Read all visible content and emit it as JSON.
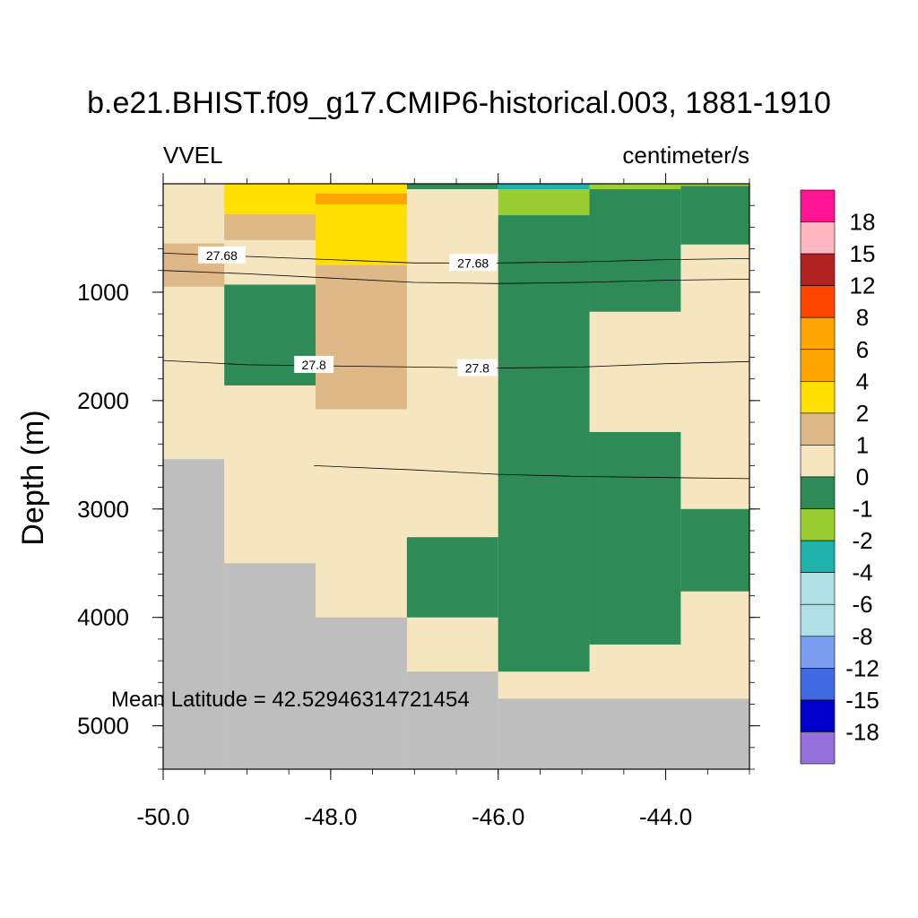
{
  "chart_data": {
    "type": "heatmap",
    "title": "b.e21.BHIST.f09_g17.CMIP6-historical.003, 1881-1910",
    "left_string": "VVEL",
    "right_string": "centimeter/s",
    "xlabel": "",
    "ylabel": "Depth (m)",
    "xlim": [
      -50.0,
      -43.0
    ],
    "ylim": [
      5400,
      0
    ],
    "x_ticks": [
      -50.0,
      -48.0,
      -46.0,
      -44.0
    ],
    "x_tick_labels": [
      "-50.0",
      "-48.0",
      "-46.0",
      "-44.0"
    ],
    "y_ticks": [
      1000,
      2000,
      3000,
      4000,
      5000
    ],
    "y_tick_labels": [
      "1000",
      "2000",
      "3000",
      "4000",
      "5000"
    ],
    "annotation": "Mean Latitude = 42.52946314721454",
    "missing_color": "#bebebe",
    "colorbar": {
      "labels": [
        "18",
        "15",
        "12",
        "8",
        "6",
        "4",
        "2",
        "1",
        "0",
        "-1",
        "-2",
        "-4",
        "-6",
        "-8",
        "-12",
        "-15",
        "-18"
      ],
      "colors": [
        "#ff1493",
        "#ffb6c1",
        "#b22222",
        "#ff4500",
        "#ffa500",
        "#ffa500",
        "#ffe000",
        "#deb887",
        "#f5e6c0",
        "#2e8b57",
        "#9acd32",
        "#20b2aa",
        "#b0e0e6",
        "#b0e0e6",
        "#7b9ef0",
        "#4169e1",
        "#0000cd",
        "#9370db"
      ]
    },
    "cells": [
      {
        "x0": -50.0,
        "x1": -43.0,
        "d0": 0,
        "d1": 5400,
        "value": 0.5
      },
      {
        "x0": -50.0,
        "x1": -49.27,
        "d0": 550,
        "d1": 950,
        "value": 1.5
      },
      {
        "x0": -49.27,
        "x1": -48.18,
        "d0": 0,
        "d1": 280,
        "value": 3
      },
      {
        "x0": -49.27,
        "x1": -48.18,
        "d0": 280,
        "d1": 520,
        "value": 1.5
      },
      {
        "x0": -48.18,
        "x1": -47.09,
        "d0": 0,
        "d1": 90,
        "value": 3
      },
      {
        "x0": -48.18,
        "x1": -47.09,
        "d0": 90,
        "d1": 190,
        "value": 5
      },
      {
        "x0": -48.18,
        "x1": -47.09,
        "d0": 190,
        "d1": 750,
        "value": 3
      },
      {
        "x0": -48.18,
        "x1": -47.09,
        "d0": 750,
        "d1": 2080,
        "value": 1.5
      },
      {
        "x0": -49.27,
        "x1": -48.18,
        "d0": 930,
        "d1": 1860,
        "value": -0.5
      },
      {
        "x0": -47.09,
        "x1": -46.0,
        "d0": 0,
        "d1": 50,
        "value": -0.5
      },
      {
        "x0": -46.0,
        "x1": -44.91,
        "d0": 0,
        "d1": 50,
        "value": -3
      },
      {
        "x0": -44.91,
        "x1": -43.82,
        "d0": 0,
        "d1": 50,
        "value": -1.5
      },
      {
        "x0": -43.82,
        "x1": -43.0,
        "d0": 0,
        "d1": 20,
        "value": -1.5
      },
      {
        "x0": -46.0,
        "x1": -44.91,
        "d0": 50,
        "d1": 290,
        "value": -1.5
      },
      {
        "x0": -46.0,
        "x1": -44.91,
        "d0": 290,
        "d1": 4500,
        "value": -0.5
      },
      {
        "x0": -44.91,
        "x1": -43.82,
        "d0": 50,
        "d1": 1180,
        "value": -0.5
      },
      {
        "x0": -43.82,
        "x1": -43.0,
        "d0": 20,
        "d1": 560,
        "value": -0.5
      },
      {
        "x0": -44.91,
        "x1": -43.82,
        "d0": 2290,
        "d1": 4250,
        "value": -0.5
      },
      {
        "x0": -43.82,
        "x1": -43.0,
        "d0": 3000,
        "d1": 3760,
        "value": -0.5
      },
      {
        "x0": -47.09,
        "x1": -46.0,
        "d0": 3260,
        "d1": 4000,
        "value": -0.5
      },
      {
        "x0": -50.0,
        "x1": -49.27,
        "d0": 2540,
        "d1": 5400,
        "value": null
      },
      {
        "x0": -49.27,
        "x1": -48.18,
        "d0": 3500,
        "d1": 5400,
        "value": null
      },
      {
        "x0": -48.18,
        "x1": -47.09,
        "d0": 4000,
        "d1": 5400,
        "value": null
      },
      {
        "x0": -47.09,
        "x1": -46.0,
        "d0": 4500,
        "d1": 5400,
        "value": null
      },
      {
        "x0": -46.0,
        "x1": -43.0,
        "d0": 4750,
        "d1": 5400,
        "value": null
      }
    ],
    "contours": [
      {
        "level": "27.68",
        "points": [
          [
            -50.0,
            640
          ],
          [
            -49.0,
            670
          ],
          [
            -48.0,
            700
          ],
          [
            -47.0,
            730
          ],
          [
            -46.0,
            730
          ],
          [
            -45.0,
            720
          ],
          [
            -44.0,
            700
          ],
          [
            -43.0,
            690
          ]
        ],
        "labels": [
          [
            -49.3,
            660
          ],
          [
            -46.3,
            730
          ]
        ]
      },
      {
        "level": "",
        "points": [
          [
            -50.0,
            800
          ],
          [
            -49.0,
            830
          ],
          [
            -48.0,
            870
          ],
          [
            -47.0,
            910
          ],
          [
            -46.0,
            920
          ],
          [
            -45.0,
            910
          ],
          [
            -44.0,
            890
          ],
          [
            -43.0,
            880
          ]
        ],
        "labels": []
      },
      {
        "level": "27.8",
        "points": [
          [
            -50.0,
            1630
          ],
          [
            -49.0,
            1670
          ],
          [
            -48.0,
            1680
          ],
          [
            -47.0,
            1690
          ],
          [
            -46.0,
            1700
          ],
          [
            -45.0,
            1690
          ],
          [
            -44.0,
            1660
          ],
          [
            -43.0,
            1640
          ]
        ],
        "labels": [
          [
            -48.2,
            1670
          ],
          [
            -46.25,
            1700
          ]
        ]
      },
      {
        "level": "",
        "points": [
          [
            -48.2,
            2600
          ],
          [
            -47.0,
            2640
          ],
          [
            -46.0,
            2680
          ],
          [
            -45.0,
            2700
          ],
          [
            -44.0,
            2710
          ],
          [
            -43.0,
            2720
          ]
        ],
        "labels": []
      }
    ]
  }
}
